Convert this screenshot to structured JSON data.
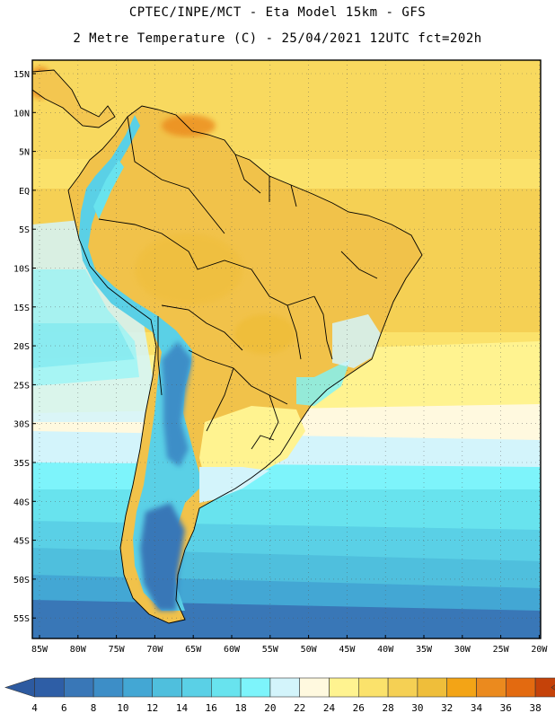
{
  "header": {
    "line1": "CPTEC/INPE/MCT -  Eta Model 15km - GFS",
    "line2": "2 Metre Temperature (C) - 25/04/2021 12UTC fct=202h"
  },
  "map": {
    "lat_labels": [
      "15N",
      "10N",
      "5N",
      "EQ",
      "5S",
      "10S",
      "15S",
      "20S",
      "25S",
      "30S",
      "35S",
      "40S",
      "45S",
      "50S",
      "55S"
    ],
    "lon_labels": [
      "85W",
      "80W",
      "75W",
      "70W",
      "65W",
      "60W",
      "55W",
      "50W",
      "45W",
      "40W",
      "35W",
      "30W",
      "25W",
      "20W"
    ]
  },
  "legend": {
    "labels": [
      "4",
      "6",
      "8",
      "10",
      "12",
      "14",
      "16",
      "18",
      "20",
      "22",
      "24",
      "26",
      "28",
      "30",
      "32",
      "34",
      "36",
      "38"
    ],
    "colors": [
      "#2e5ea6",
      "#3977b7",
      "#3d8ec7",
      "#43a7d4",
      "#4fbfdd",
      "#5ad0e6",
      "#68e3ee",
      "#7df4fb",
      "#d3f4fb",
      "#fff9df",
      "#fff390",
      "#fbe26b",
      "#f5d054",
      "#efbe3a",
      "#f3a416",
      "#eb8a1e",
      "#e36a10",
      "#c54209"
    ],
    "end_left": "#2d5aa0",
    "end_right": "#b23a06"
  }
}
